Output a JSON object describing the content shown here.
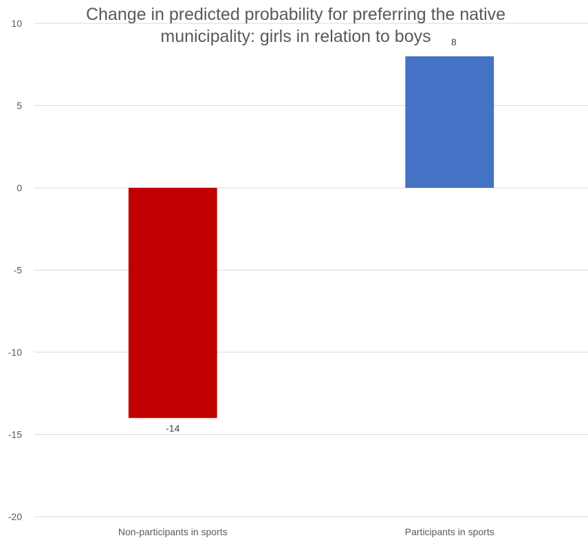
{
  "chart_data": {
    "type": "bar",
    "title_lines": [
      "Change in predicted probability for preferring the native",
      "municipality: girls in relation to boys"
    ],
    "xlabel": "",
    "ylabel": "",
    "categories": [
      "Non-participants in sports",
      "Participants in sports"
    ],
    "values": [
      -14,
      8
    ],
    "data_labels": [
      "-14",
      "8"
    ],
    "bar_colors": [
      "#C00000",
      "#4472C4"
    ],
    "ylim": [
      -20,
      10
    ],
    "yticks": [
      10,
      5,
      0,
      -5,
      -10,
      -15,
      -20
    ],
    "grid": true,
    "legend": "none"
  }
}
